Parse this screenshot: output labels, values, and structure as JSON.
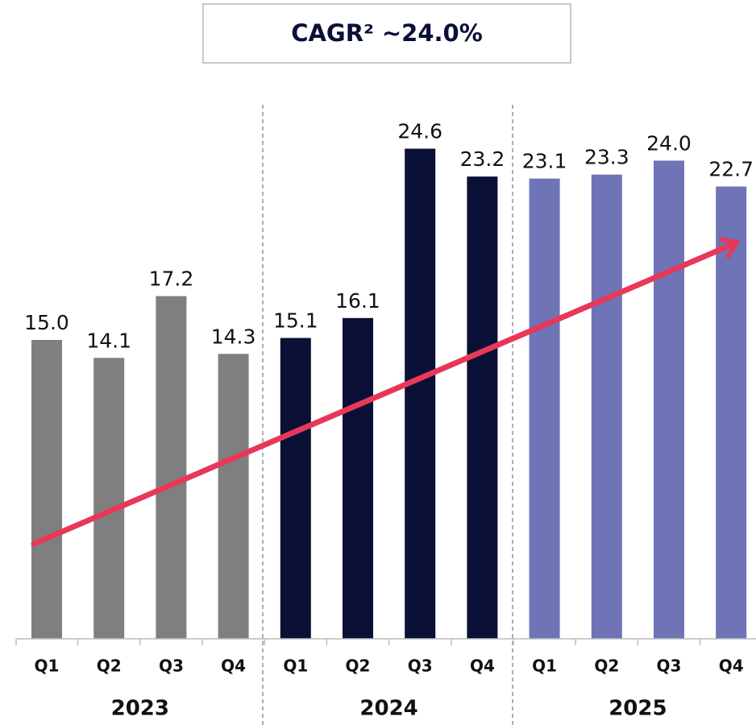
{
  "chart_data": {
    "type": "bar",
    "title": "CAGR² ~24.0%",
    "categories": [
      "Q1",
      "Q2",
      "Q3",
      "Q4"
    ],
    "series": [
      {
        "name": "2023",
        "color": "#7f7f7f",
        "values": [
          15.0,
          14.1,
          17.2,
          14.3
        ],
        "value_labels": [
          "15.0",
          "14.1",
          "17.2",
          "14.3"
        ]
      },
      {
        "name": "2024",
        "color": "#0a0f35",
        "values": [
          15.1,
          16.1,
          24.6,
          23.2
        ],
        "value_labels": [
          "15.1",
          "16.1",
          "24.6",
          "23.2"
        ]
      },
      {
        "name": "2025",
        "color": "#6e74b5",
        "values": [
          23.1,
          23.3,
          24.0,
          22.7
        ],
        "value_labels": [
          "23.1",
          "23.3",
          "24.0",
          "22.7"
        ]
      }
    ],
    "ylim": [
      0,
      30
    ]
  }
}
